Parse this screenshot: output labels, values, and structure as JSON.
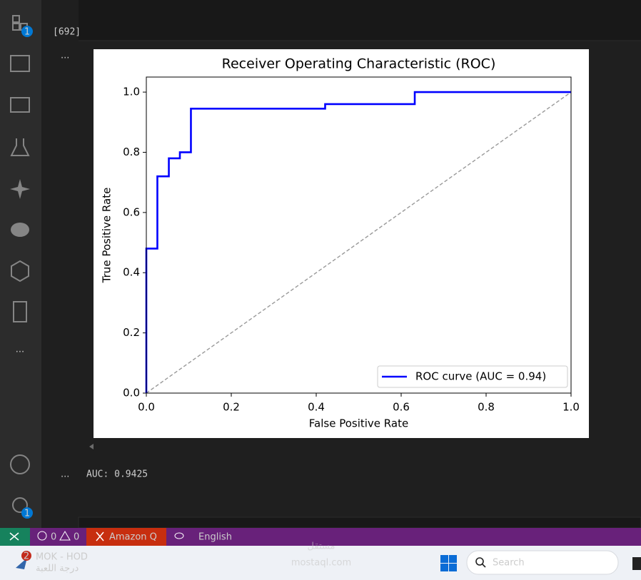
{
  "activity_bar": {
    "extensions_badge": "1",
    "settings_badge": "1"
  },
  "cell": {
    "execution_count": "[692]",
    "output_menu": "...",
    "text_output_menu": "...",
    "text_output": "AUC: 0.9425"
  },
  "status_bar": {
    "errors": "0",
    "warnings": "0",
    "amazon_q": "Amazon Q",
    "language": "English"
  },
  "taskbar": {
    "app_badge": "2",
    "app_title": "MOK - HOD",
    "app_subtitle": "درجة اللعبة",
    "search": "Search"
  },
  "watermark": {
    "name": "مستقل",
    "site": "mostaql.com"
  },
  "chart_data": {
    "type": "line",
    "title": "Receiver Operating Characteristic (ROC)",
    "x_label": "False Positive Rate",
    "y_label": "True Positive Rate",
    "series": [
      {
        "name": "ROC curve (AUC = 0.94)",
        "color": "#0000ff",
        "x": [
          0,
          0,
          0.026,
          0.026,
          0.053,
          0.053,
          0.079,
          0.079,
          0.105,
          0.105,
          0.421,
          0.421,
          0.632,
          0.632,
          1
        ],
        "values": [
          0,
          0.48,
          0.48,
          0.72,
          0.72,
          0.78,
          0.78,
          0.8,
          0.8,
          0.945,
          0.945,
          0.96,
          0.96,
          1,
          1
        ]
      },
      {
        "color": "#999999",
        "dashed": true,
        "x": [
          0,
          1
        ],
        "values": [
          0,
          1
        ]
      }
    ],
    "xlim": [
      0,
      1
    ],
    "ylim": [
      0,
      1.05
    ],
    "xticks": [
      {
        "value": 0,
        "label": "0.0"
      },
      0.2,
      0.4,
      0.6,
      0.8,
      {
        "value": 1,
        "label": "1.0"
      }
    ],
    "yticks": [
      {
        "value": 0,
        "label": "0.0"
      },
      0.2,
      0.4,
      0.6,
      0.8,
      {
        "value": 1,
        "label": "1.0"
      }
    ],
    "grid": false,
    "legend": "lower right"
  }
}
